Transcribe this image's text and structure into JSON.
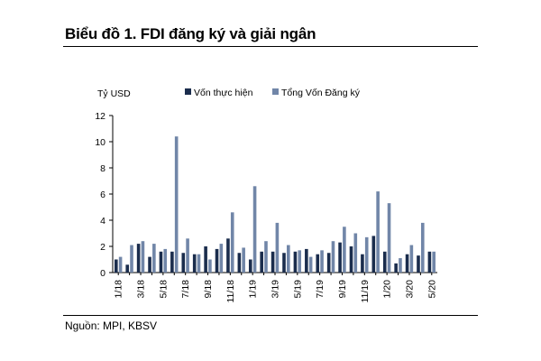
{
  "page": {
    "title": "Biểu đồ 1. FDI đăng ký và giải ngân",
    "source": "Nguồn: MPI, KBSV"
  },
  "chart_data": {
    "type": "bar",
    "ylabel": "Tỷ USD",
    "ylim": [
      0,
      12
    ],
    "yticks": [
      0,
      2,
      4,
      6,
      8,
      10,
      12
    ],
    "legend_position": "top",
    "colors": {
      "Vốn thực hiện": "#1b2d4d",
      "Tổng Vốn Đăng ký": "#7186a8"
    },
    "categories": [
      "1/18",
      "2/18",
      "3/18",
      "4/18",
      "5/18",
      "6/18",
      "7/18",
      "8/18",
      "9/18",
      "10/18",
      "11/18",
      "12/18",
      "1/19",
      "2/19",
      "3/19",
      "4/19",
      "5/19",
      "6/19",
      "7/19",
      "8/19",
      "9/19",
      "10/19",
      "11/19",
      "12/19",
      "1/20",
      "2/20",
      "3/20",
      "4/20",
      "5/20"
    ],
    "tick_labels": [
      "1/18",
      "3/18",
      "5/18",
      "7/18",
      "9/18",
      "11/18",
      "1/19",
      "3/19",
      "5/19",
      "7/19",
      "9/19",
      "11/19",
      "1/20",
      "3/20",
      "5/20"
    ],
    "series": [
      {
        "name": "Vốn thực hiện",
        "values": [
          1.0,
          0.6,
          2.2,
          1.2,
          1.6,
          1.6,
          1.5,
          1.4,
          2.0,
          1.8,
          2.6,
          1.5,
          1.0,
          1.6,
          1.6,
          1.5,
          1.6,
          1.8,
          1.4,
          1.5,
          2.3,
          2.0,
          1.4,
          2.8,
          1.6,
          0.7,
          1.4,
          1.3,
          1.6
        ]
      },
      {
        "name": "Tổng Vốn Đăng ký",
        "values": [
          1.2,
          2.1,
          2.4,
          2.2,
          1.8,
          10.4,
          2.6,
          1.4,
          1.0,
          2.2,
          4.6,
          1.9,
          6.6,
          2.4,
          3.8,
          2.1,
          1.7,
          1.2,
          1.7,
          2.4,
          3.5,
          3.0,
          2.7,
          6.2,
          5.3,
          1.1,
          2.1,
          3.8,
          1.6
        ]
      }
    ]
  }
}
